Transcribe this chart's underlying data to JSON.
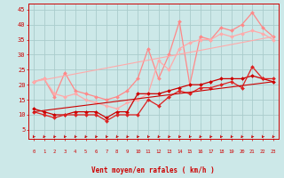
{
  "background_color": "#cce8e8",
  "grid_color": "#aacccc",
  "xlabel": "Vent moyen/en rafales ( km/h )",
  "xlim": [
    -0.5,
    23.5
  ],
  "ylim": [
    2,
    47
  ],
  "yticks": [
    5,
    10,
    15,
    20,
    25,
    30,
    35,
    40,
    45
  ],
  "xticks": [
    0,
    1,
    2,
    3,
    4,
    5,
    6,
    7,
    8,
    9,
    10,
    11,
    12,
    13,
    14,
    15,
    16,
    17,
    18,
    19,
    20,
    21,
    22,
    23
  ],
  "lines": [
    {
      "x": [
        0,
        1,
        2,
        3,
        4,
        5,
        6,
        7,
        8,
        9,
        10,
        11,
        12,
        13,
        14,
        15,
        16,
        17,
        18,
        19,
        20,
        21,
        22,
        23
      ],
      "y": [
        21,
        22,
        16,
        24,
        18,
        17,
        16,
        15,
        16,
        18,
        22,
        32,
        22,
        30,
        41,
        20,
        36,
        35,
        39,
        38,
        40,
        44,
        39,
        36
      ],
      "color": "#ff8888",
      "marker": "D",
      "markersize": 2,
      "linewidth": 0.9
    },
    {
      "x": [
        0,
        1,
        2,
        3,
        4,
        5,
        6,
        7,
        8,
        9,
        10,
        11,
        12,
        13,
        14,
        15,
        16,
        17,
        18,
        19,
        20,
        21,
        22,
        23
      ],
      "y": [
        21,
        22,
        17,
        16,
        17,
        15,
        14,
        13,
        12,
        14,
        15,
        17,
        28,
        25,
        32,
        34,
        35,
        35,
        37,
        36,
        37,
        38,
        37,
        35
      ],
      "color": "#ffaaaa",
      "marker": "D",
      "markersize": 2,
      "linewidth": 0.9
    },
    {
      "x": [
        0,
        1,
        2,
        3,
        4,
        5,
        6,
        7,
        8,
        9,
        10,
        11,
        12,
        13,
        14,
        15,
        16,
        17,
        18,
        19,
        20,
        21,
        22,
        23
      ],
      "y": [
        12,
        11,
        10,
        10,
        11,
        11,
        11,
        9,
        11,
        11,
        17,
        17,
        17,
        18,
        19,
        20,
        20,
        21,
        22,
        22,
        22,
        23,
        22,
        21
      ],
      "color": "#cc0000",
      "marker": "D",
      "markersize": 2,
      "linewidth": 0.9
    },
    {
      "x": [
        0,
        1,
        2,
        3,
        4,
        5,
        6,
        7,
        8,
        9,
        10,
        11,
        12,
        13,
        14,
        15,
        16,
        17,
        18,
        19,
        20,
        21,
        22,
        23
      ],
      "y": [
        11,
        10,
        9,
        10,
        10,
        10,
        10,
        8,
        10,
        10,
        10,
        15,
        13,
        16,
        18,
        17,
        19,
        19,
        20,
        21,
        19,
        26,
        22,
        22
      ],
      "color": "#dd2222",
      "marker": "D",
      "markersize": 2,
      "linewidth": 0.9
    },
    {
      "x": [
        0,
        23
      ],
      "y": [
        11,
        21
      ],
      "color": "#cc0000",
      "marker": null,
      "markersize": 0,
      "linewidth": 0.8
    },
    {
      "x": [
        0,
        23
      ],
      "y": [
        21,
        36
      ],
      "color": "#ffaaaa",
      "marker": null,
      "markersize": 0,
      "linewidth": 0.8
    }
  ]
}
